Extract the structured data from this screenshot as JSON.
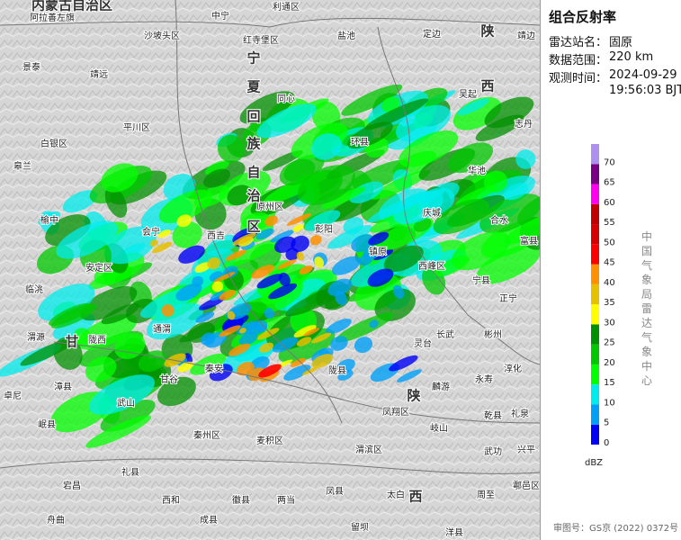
{
  "header": {
    "title": "组合反射率"
  },
  "info": [
    {
      "label": "雷达站名：",
      "value": "固原"
    },
    {
      "label": "数据范围：",
      "value": "220 km"
    },
    {
      "label": "观测时间：",
      "value": "2024-09-29",
      "value2": "19:56:03 BJT"
    }
  ],
  "legend": {
    "unit": "dBZ",
    "ticks": [
      0,
      5,
      10,
      15,
      20,
      25,
      30,
      35,
      40,
      45,
      50,
      55,
      60,
      65,
      70
    ],
    "colors": [
      "#0000f6",
      "#01a0f6",
      "#00ecec",
      "#01ff00",
      "#00c800",
      "#019000",
      "#ffff00",
      "#e7c000",
      "#ff9000",
      "#ff0000",
      "#d60000",
      "#c00000",
      "#ff00f0",
      "#780084",
      "#ad90f0"
    ]
  },
  "credit": "中国气象局雷达气象中心",
  "approval": "审图号：GS京 (2022) 0372号",
  "map": {
    "region_labels": [
      "内蒙古自治区",
      "陕",
      "西",
      "宁",
      "夏",
      "回",
      "族",
      "自",
      "治",
      "区",
      "甘",
      "陕",
      "西"
    ],
    "labels": [
      "阿拉善左旗",
      "沙坡头区",
      "中宁",
      "利通区",
      "盐池",
      "定边",
      "靖边",
      "红寺堡区",
      "景泰",
      "靖远",
      "同心",
      "吴起",
      "平川区",
      "志丹",
      "白银区",
      "环县",
      "皋兰",
      "华池",
      "榆中",
      "会宁",
      "原州区",
      "庆城",
      "合水",
      "西吉",
      "彭阳",
      "镇原",
      "富县",
      "安定区",
      "临洮",
      "西峰区",
      "宁县",
      "正宁",
      "渭源",
      "通渭",
      "陇西",
      "灵台",
      "长武",
      "彬州",
      "淳化",
      "永寿",
      "漳县",
      "甘谷",
      "秦安",
      "陇县",
      "麟游",
      "乾县",
      "礼泉",
      "武山",
      "岷县",
      "凤翔区",
      "岐山",
      "秦州区",
      "麦积区",
      "渭滨区",
      "武功",
      "兴平",
      "宕昌",
      "礼县",
      "西和",
      "徽县",
      "两当",
      "凤县",
      "太白",
      "周至",
      "鄠邑区",
      "舟曲",
      "成县",
      "留坝",
      "洋县",
      "卓尼"
    ]
  }
}
